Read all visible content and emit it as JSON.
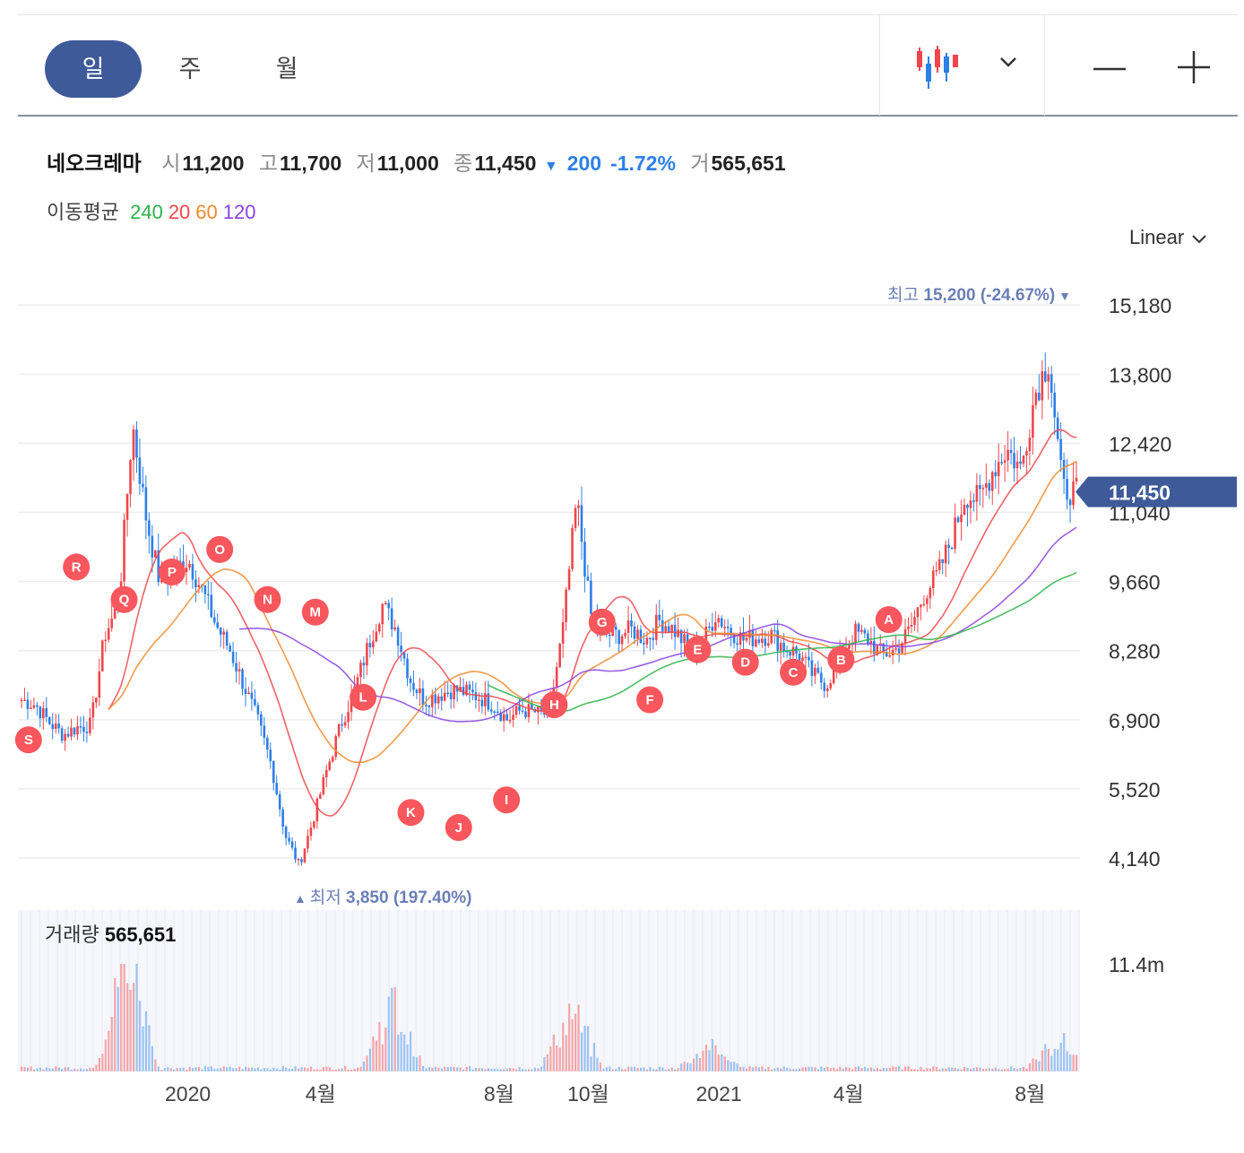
{
  "toolbar": {
    "tabs": [
      {
        "label": "일",
        "active": true
      },
      {
        "label": "주",
        "active": false
      },
      {
        "label": "월",
        "active": false
      }
    ],
    "chart_type_icon": "candlestick-icon",
    "dropdown_icon": "chevron-down-icon",
    "zoom_out_icon": "minus-icon",
    "zoom_in_icon": "plus-icon"
  },
  "quote": {
    "name": "네오크레마",
    "open_label": "시",
    "open": "11,200",
    "high_label": "고",
    "high": "11,700",
    "low_label": "저",
    "low": "11,000",
    "close_label": "종",
    "close": "11,450",
    "change_arrow": "▼",
    "change": "200",
    "change_pct": "-1.72%",
    "volume_label": "거",
    "volume": "565,651"
  },
  "moving_average": {
    "label": "이동평균",
    "periods": [
      {
        "period": "240",
        "color": "#2fb24a"
      },
      {
        "period": "20",
        "color": "#f0464b"
      },
      {
        "period": "60",
        "color": "#f08a2c"
      },
      {
        "period": "120",
        "color": "#8a44e0"
      }
    ]
  },
  "scale_selector": {
    "label": "Linear",
    "icon": "chevron-down-icon"
  },
  "colors": {
    "up": "#f0464b",
    "down": "#2e7fe6",
    "accent": "#3e5a99",
    "annotation": "#6b7fb6",
    "marker": "#f9575d"
  },
  "chart_data": {
    "type": "candlestick",
    "y_axis": {
      "ticks": [
        "15,180",
        "13,800",
        "12,420",
        "11,040",
        "9,660",
        "8,280",
        "6,900",
        "5,520",
        "4,140"
      ],
      "tick_values": [
        15180,
        13800,
        12420,
        11040,
        9660,
        8280,
        6900,
        5520,
        4140
      ],
      "range": [
        3550,
        15900
      ],
      "scale": "linear",
      "grid": true
    },
    "x_axis": {
      "labels": [
        "2020",
        "4월",
        "8월",
        "10월",
        "2021",
        "4월",
        "8월"
      ]
    },
    "current_price": {
      "label": "11,450",
      "value": 11450
    },
    "high_annotation": {
      "label": "최고",
      "value_text": "15,200 (-24.67%)",
      "arrow": "▼",
      "value": 15200
    },
    "low_annotation": {
      "label": "최저",
      "value_text": "3,850 (197.40%)",
      "arrow": "▲",
      "value": 3850
    },
    "price_anchors": [
      7300,
      7200,
      6850,
      6600,
      6750,
      6800,
      8600,
      9200,
      12800,
      10900,
      9600,
      9900,
      10100,
      9500,
      8800,
      8300,
      7600,
      6900,
      6000,
      4600,
      4000,
      4900,
      5900,
      6800,
      7500,
      8400,
      9200,
      8700,
      7700,
      7300,
      7400,
      7500,
      7450,
      7350,
      7200,
      6900,
      7100,
      7050,
      7000,
      8700,
      11300,
      9000,
      8600,
      8600,
      8700,
      8500,
      8900,
      8700,
      8350,
      8400,
      9000,
      8700,
      8500,
      8550,
      8600,
      8350,
      8200,
      7800,
      7600,
      8200,
      8650,
      8500,
      8200,
      8300,
      8700,
      9400,
      9800,
      10500,
      11400,
      11300,
      11900,
      12300,
      11900,
      13400,
      14100,
      11500,
      11450
    ],
    "events": [
      {
        "label": "A",
        "value": 8900
      },
      {
        "label": "B",
        "value": 8100
      },
      {
        "label": "C",
        "value": 7850
      },
      {
        "label": "D",
        "value": 8050
      },
      {
        "label": "E",
        "value": 8300
      },
      {
        "label": "F",
        "value": 7300
      },
      {
        "label": "G",
        "value": 8850
      },
      {
        "label": "H",
        "value": 7200
      },
      {
        "label": "I",
        "value": 5300
      },
      {
        "label": "J",
        "value": 4750
      },
      {
        "label": "K",
        "value": 5050
      },
      {
        "label": "L",
        "value": 7350
      },
      {
        "label": "M",
        "value": 9050
      },
      {
        "label": "N",
        "value": 9300
      },
      {
        "label": "O",
        "value": 10300
      },
      {
        "label": "P",
        "value": 9850
      },
      {
        "label": "Q",
        "value": 9300
      },
      {
        "label": "R",
        "value": 9950
      },
      {
        "label": "S",
        "value": 6500
      }
    ],
    "volume": {
      "label": "거래량",
      "value": "565,651",
      "axis_label": "11.4m",
      "spike_multipliers": [
        {
          "at": 0.1,
          "value": 9
        },
        {
          "at": 0.35,
          "value": 5
        },
        {
          "at": 0.52,
          "value": 4.5
        },
        {
          "at": 0.65,
          "value": 1.8
        },
        {
          "at": 0.98,
          "value": 2.2
        }
      ]
    }
  }
}
